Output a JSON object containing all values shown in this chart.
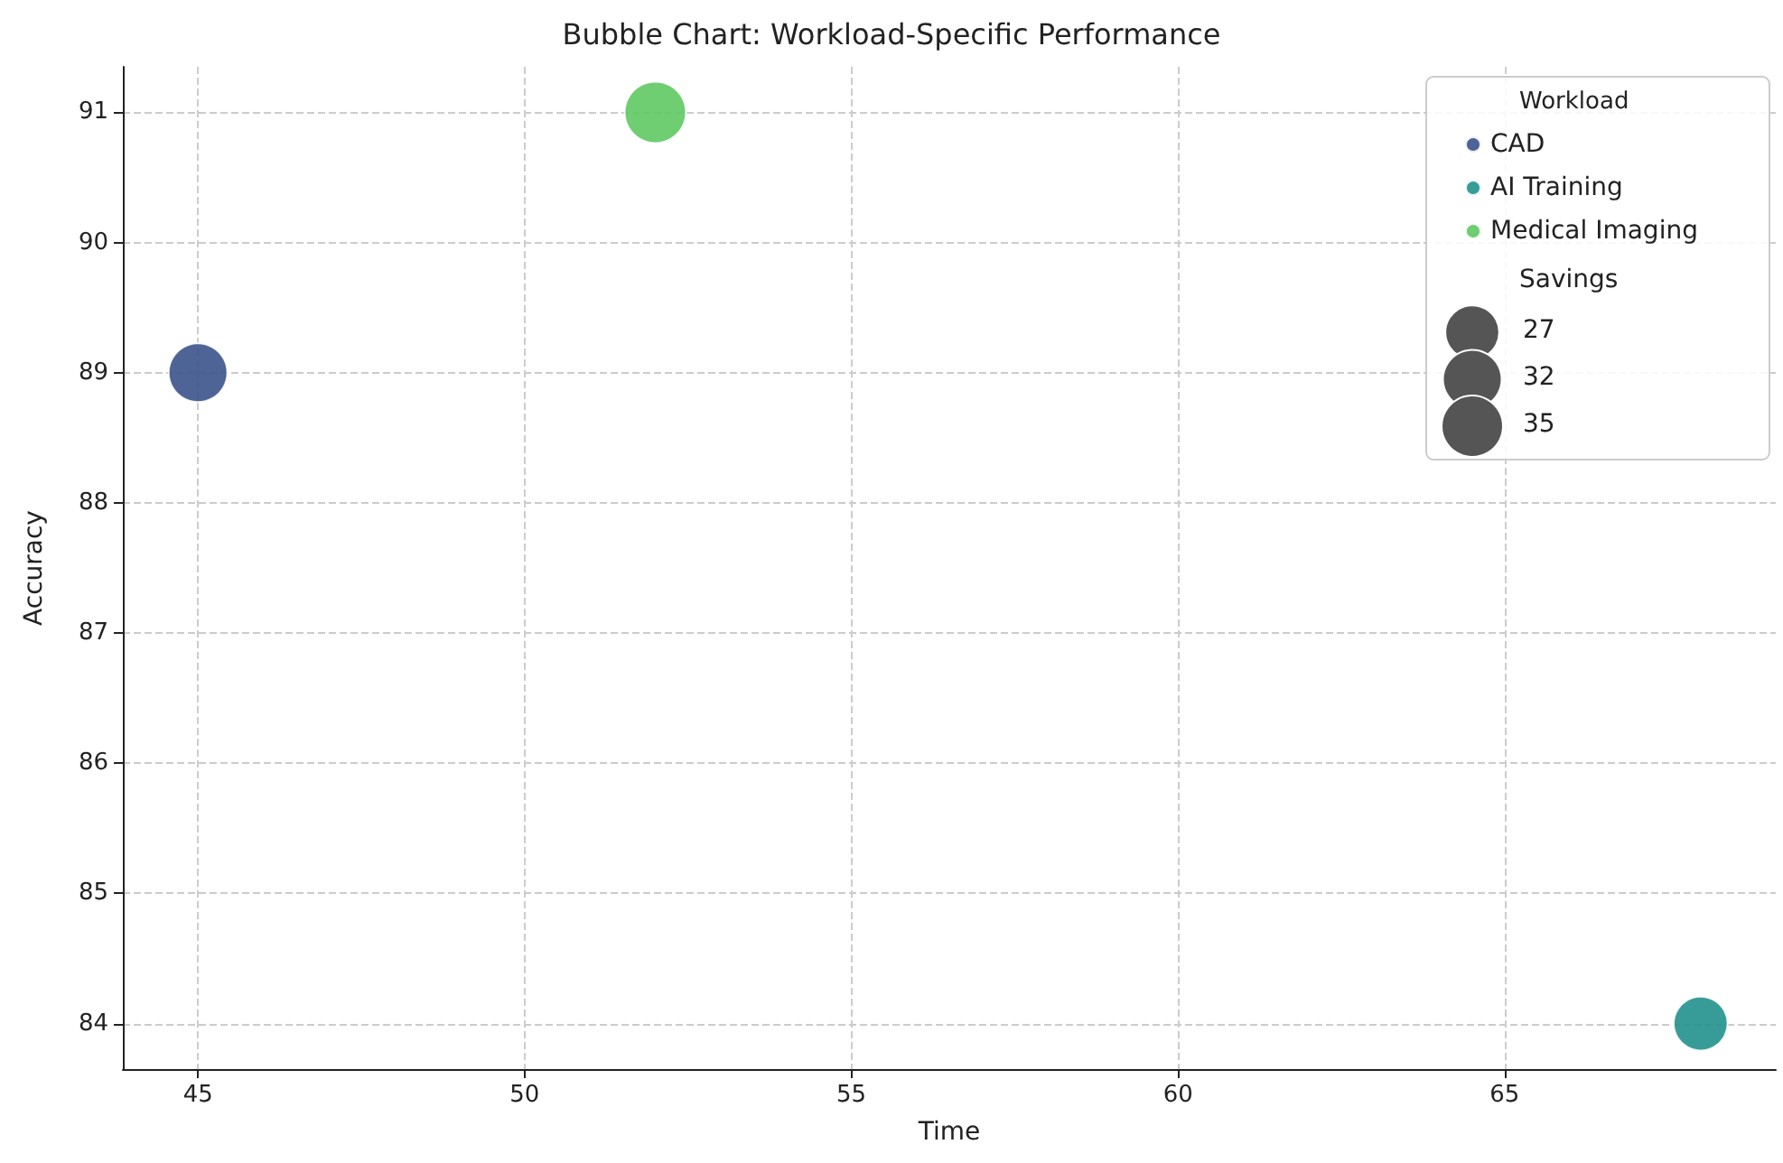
{
  "chart_data": {
    "type": "bubble",
    "title": "Bubble Chart: Workload-Specific Performance",
    "xlabel": "Time",
    "ylabel": "Accuracy",
    "legend_title": "Workload",
    "series": [
      {
        "name": "CAD",
        "color": "#3b528b",
        "x": [
          45
        ],
        "values": [
          89
        ],
        "sizes": [
          32
        ]
      },
      {
        "name": "AI Training",
        "color": "#21918c",
        "x": [
          68
        ],
        "values": [
          84
        ],
        "sizes": [
          27
        ]
      },
      {
        "name": "Medical Imaging",
        "color": "#5ec962",
        "x": [
          52
        ],
        "values": [
          91
        ],
        "sizes": [
          35
        ]
      }
    ],
    "size_legend": [
      27,
      32,
      35
    ],
    "annotations": [
      "Savings"
    ],
    "xlim": [
      43.85,
      69.15
    ],
    "xticks": [
      45,
      50,
      55,
      60,
      65
    ],
    "ylim": [
      83.65,
      91.35
    ],
    "yticks": [
      84,
      85,
      86,
      87,
      88,
      89,
      90,
      91
    ],
    "grid": true,
    "legend": "top right",
    "marker": "circle"
  }
}
